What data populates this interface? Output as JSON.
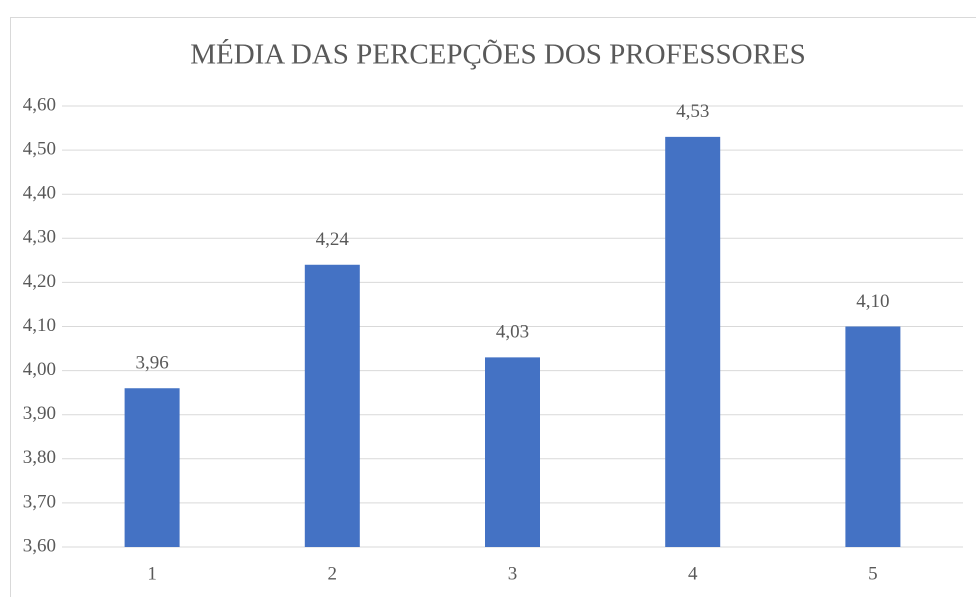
{
  "chart_data": {
    "type": "bar",
    "title": "MÉDIA DAS PERCEPÇÕES DOS PROFESSORES",
    "categories": [
      "1",
      "2",
      "3",
      "4",
      "5"
    ],
    "values": [
      3.96,
      4.24,
      4.03,
      4.53,
      4.1
    ],
    "value_labels": [
      "3,96",
      "4,24",
      "4,03",
      "4,53",
      "4,10"
    ],
    "color": "#4472c4",
    "ylim": [
      3.6,
      4.6
    ],
    "yticks": [
      {
        "value": 3.6,
        "label": "3,60"
      },
      {
        "value": 3.7,
        "label": "3,70"
      },
      {
        "value": 3.8,
        "label": "3,80"
      },
      {
        "value": 3.9,
        "label": "3,90"
      },
      {
        "value": 4.0,
        "label": "4,00"
      },
      {
        "value": 4.1,
        "label": "4,10"
      },
      {
        "value": 4.2,
        "label": "4,20"
      },
      {
        "value": 4.3,
        "label": "4,30"
      },
      {
        "value": 4.4,
        "label": "4,40"
      },
      {
        "value": 4.5,
        "label": "4,50"
      },
      {
        "value": 4.6,
        "label": "4,60"
      }
    ],
    "grid": true
  }
}
